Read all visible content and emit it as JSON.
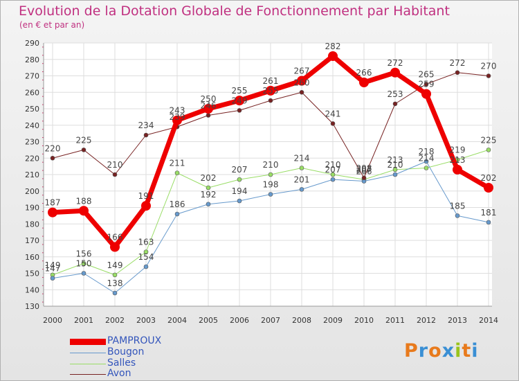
{
  "page": {
    "title": "Evolution de la Dotation Globale de Fonctionnement par Habitant",
    "subtitle": "(en € et par an)"
  },
  "logo": {
    "text": "Proxiti",
    "letters": [
      "P",
      "r",
      "o",
      "x",
      "i",
      "t",
      "i"
    ],
    "colors": [
      "#e87a1c",
      "#3a8fd4",
      "#e87a1c",
      "#3a8fd4",
      "#9ac41c",
      "#e87a1c",
      "#3a8fd4"
    ]
  },
  "chart_data": {
    "type": "line",
    "title": "Evolution de la Dotation Globale de Fonctionnement par Habitant",
    "subtitle": "(en € et par an)",
    "xlabel": "",
    "ylabel": "",
    "ylim": [
      130,
      290
    ],
    "yticks": [
      130,
      140,
      150,
      160,
      170,
      180,
      190,
      200,
      210,
      220,
      230,
      240,
      250,
      260,
      270,
      280,
      290
    ],
    "categories": [
      "2000",
      "2001",
      "2002",
      "2003",
      "2004",
      "2005",
      "2006",
      "2007",
      "2008",
      "2009",
      "2010",
      "2011",
      "2012",
      "2013",
      "2014"
    ],
    "grid": true,
    "legend_position": "bottom-left",
    "series": [
      {
        "name": "PAMPROUX",
        "color": "#ee0000",
        "values": [
          187,
          188,
          166,
          191,
          243,
          250,
          255,
          261,
          267,
          282,
          266,
          272,
          259,
          213,
          202
        ]
      },
      {
        "name": "Bougon",
        "color": "#6699cc",
        "values": [
          147,
          150,
          138,
          154,
          186,
          192,
          194,
          198,
          201,
          207,
          206,
          210,
          218,
          185,
          181
        ]
      },
      {
        "name": "Salles",
        "color": "#99dd66",
        "values": [
          149,
          156,
          149,
          163,
          211,
          202,
          207,
          210,
          214,
          210,
          207,
          213,
          214,
          219,
          225
        ]
      },
      {
        "name": "Avon",
        "color": "#772222",
        "values": [
          220,
          225,
          210,
          234,
          239,
          246,
          249,
          255,
          260,
          241,
          208,
          253,
          265,
          272,
          270
        ]
      }
    ]
  }
}
